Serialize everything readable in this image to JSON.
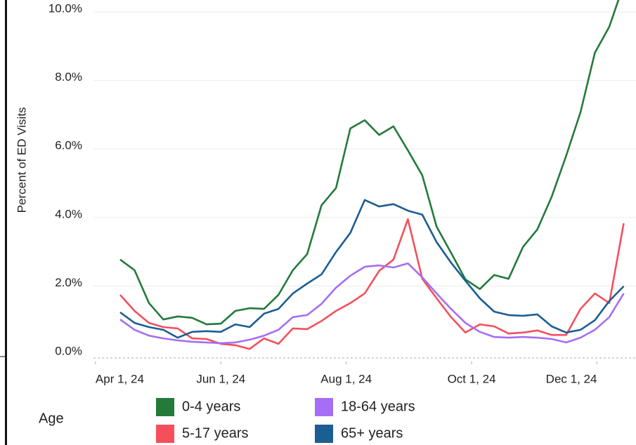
{
  "chart_data": {
    "type": "line",
    "y_axis_label": "Percent of ED Visits",
    "legend_title": "Age",
    "x": [
      "2024-04-13",
      "2024-04-20",
      "2024-04-27",
      "2024-05-04",
      "2024-05-11",
      "2024-05-18",
      "2024-05-25",
      "2024-06-01",
      "2024-06-08",
      "2024-06-15",
      "2024-06-22",
      "2024-06-29",
      "2024-07-06",
      "2024-07-13",
      "2024-07-20",
      "2024-07-27",
      "2024-08-03",
      "2024-08-10",
      "2024-08-17",
      "2024-08-24",
      "2024-08-31",
      "2024-09-07",
      "2024-09-14",
      "2024-09-21",
      "2024-09-28",
      "2024-10-05",
      "2024-10-12",
      "2024-10-19",
      "2024-10-26",
      "2024-11-02",
      "2024-11-09",
      "2024-11-16",
      "2024-11-23",
      "2024-11-30",
      "2024-12-07",
      "2024-12-14"
    ],
    "series": [
      {
        "name": "0-4 years",
        "color": "#237a3b",
        "values": [
          2.77,
          2.46,
          1.5,
          1.02,
          1.11,
          1.07,
          0.88,
          0.9,
          1.27,
          1.35,
          1.33,
          1.74,
          2.46,
          2.93,
          4.36,
          4.86,
          6.6,
          6.84,
          6.41,
          6.66,
          5.96,
          5.23,
          3.73,
          2.97,
          2.19,
          1.91,
          2.32,
          2.21,
          3.14,
          3.65,
          4.61,
          5.8,
          7.07,
          8.81,
          9.57,
          10.8
        ]
      },
      {
        "name": "5-17 years",
        "color": "#f4505c",
        "values": [
          1.74,
          1.27,
          0.92,
          0.8,
          0.76,
          0.47,
          0.45,
          0.31,
          0.27,
          0.16,
          0.47,
          0.31,
          0.76,
          0.74,
          0.98,
          1.27,
          1.5,
          1.78,
          2.44,
          2.77,
          3.95,
          2.21,
          1.64,
          1.09,
          0.64,
          0.88,
          0.82,
          0.61,
          0.64,
          0.7,
          0.57,
          0.57,
          1.33,
          1.78,
          1.5,
          3.83
        ]
      },
      {
        "name": "18-64 years",
        "color": "#a56ef4",
        "values": [
          1.02,
          0.72,
          0.55,
          0.47,
          0.41,
          0.37,
          0.35,
          0.33,
          0.35,
          0.43,
          0.55,
          0.72,
          1.09,
          1.15,
          1.48,
          1.95,
          2.3,
          2.56,
          2.6,
          2.54,
          2.66,
          2.25,
          1.78,
          1.33,
          0.92,
          0.66,
          0.51,
          0.49,
          0.51,
          0.49,
          0.45,
          0.35,
          0.49,
          0.72,
          1.09,
          1.78
        ]
      },
      {
        "name": "65+ years",
        "color": "#1b5e92",
        "values": [
          1.23,
          0.92,
          0.8,
          0.72,
          0.49,
          0.66,
          0.68,
          0.66,
          0.88,
          0.8,
          1.19,
          1.33,
          1.78,
          2.07,
          2.34,
          2.99,
          3.55,
          4.51,
          4.32,
          4.39,
          4.2,
          4.08,
          3.28,
          2.68,
          2.15,
          1.64,
          1.25,
          1.15,
          1.13,
          1.17,
          0.82,
          0.64,
          0.72,
          1.0,
          1.56,
          1.99
        ]
      }
    ],
    "xlim": [
      "2024-03-31",
      "2024-12-20"
    ],
    "xticks": [
      {
        "value": "2024-04-01",
        "label": "Apr 1, 24"
      },
      {
        "value": "2024-06-01",
        "label": "Jun 1, 24"
      },
      {
        "value": "2024-08-01",
        "label": "Aug 1, 24"
      },
      {
        "value": "2024-10-01",
        "label": "Oct 1, 24"
      },
      {
        "value": "2024-12-01",
        "label": "Dec 1, 24"
      }
    ],
    "ylim": [
      0,
      10.35
    ],
    "yticks": [
      {
        "value": 0,
        "label": "0.0%"
      },
      {
        "value": 2,
        "label": "2.0%"
      },
      {
        "value": 4,
        "label": "4.0%"
      },
      {
        "value": 6,
        "label": "6.0%"
      },
      {
        "value": 8,
        "label": "8.0%"
      },
      {
        "value": 10,
        "label": "10.0%"
      }
    ],
    "grid": true
  }
}
